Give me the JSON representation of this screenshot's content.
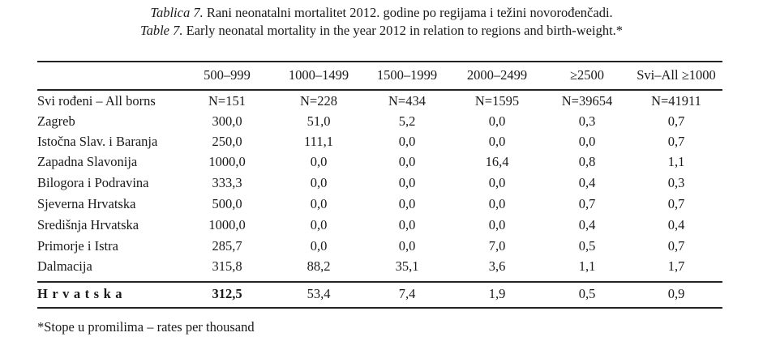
{
  "caption": {
    "hr_label": "Tablica 7.",
    "hr_text": " Rani neonatalni mortalitet 2012. godine po regijama i težini novorođenčadi.",
    "en_label": "Table 7.",
    "en_text": " Early neonatal mortality in the year 2012 in relation to regions and birth-weight.*"
  },
  "table": {
    "headers": [
      "",
      "500–999",
      "1000–1499",
      "1500–1999",
      "2000–2499",
      "≥2500",
      "Svi–All ≥1000"
    ],
    "rows": [
      [
        "Svi rođeni – All borns",
        "N=151",
        "N=228",
        "N=434",
        "N=1595",
        "N=39654",
        "N=41911"
      ],
      [
        "Zagreb",
        "300,0",
        "51,0",
        "5,2",
        "0,0",
        "0,3",
        "0,7"
      ],
      [
        "Istočna Slav. i Baranja",
        "250,0",
        "111,1",
        "0,0",
        "0,0",
        "0,0",
        "0,7"
      ],
      [
        "Zapadna Slavonija",
        "1000,0",
        "0,0",
        "0,0",
        "16,4",
        "0,8",
        "1,1"
      ],
      [
        "Bilogora i Podravina",
        "333,3",
        "0,0",
        "0,0",
        "0,0",
        "0,4",
        "0,3"
      ],
      [
        "Sjeverna Hrvatska",
        "500,0",
        "0,0",
        "0,0",
        "0,0",
        "0,7",
        "0,7"
      ],
      [
        "Središnja Hrvatska",
        "1000,0",
        "0,0",
        "0,0",
        "0,0",
        "0,4",
        "0,4"
      ],
      [
        "Primorje i Istra",
        "285,7",
        "0,0",
        "0,0",
        "7,0",
        "0,5",
        "0,7"
      ],
      [
        "Dalmacija",
        "315,8",
        "88,2",
        "35,1",
        "3,6",
        "1,1",
        "1,7"
      ]
    ],
    "total": [
      "Hrvatska",
      "312,5",
      "53,4",
      "7,4",
      "1,9",
      "0,5",
      "0,9"
    ]
  },
  "footnote": "*Stope u promilima – rates per thousand"
}
